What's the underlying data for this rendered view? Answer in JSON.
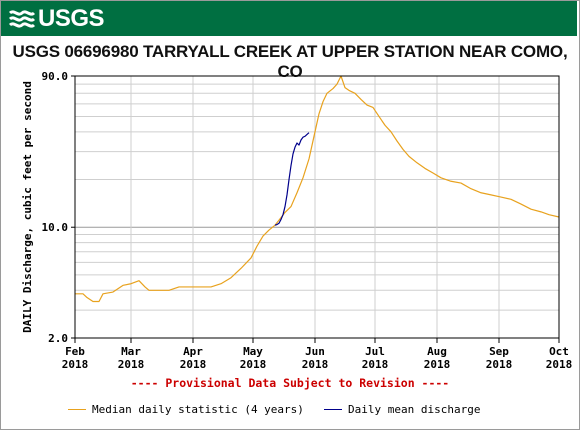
{
  "header": {
    "logo_text": "USGS",
    "logo_icon": "usgs-wave-icon"
  },
  "page_title": "USGS 06696980 TARRYALL CREEK AT UPPER STATION NEAR COMO, CO",
  "notice": "---- Provisional Data Subject to Revision ----",
  "legend": {
    "median_label": "Median daily statistic (4 years)",
    "mean_label": "Daily mean discharge"
  },
  "colors": {
    "banner": "#006f41",
    "median": "#e8a21e",
    "mean": "#00008b",
    "notice": "#cc0000"
  },
  "chart_data": {
    "type": "line",
    "ylabel": "DAILY Discharge, cubic feet per second",
    "yscale": "log",
    "ylim": [
      2.0,
      90.0
    ],
    "ytick_labels": [
      "90.0",
      "10.0",
      "2.0"
    ],
    "xlim": [
      "2018-02-01",
      "2018-10-01"
    ],
    "xtick_labels": [
      {
        "month": "Feb",
        "year": "2018"
      },
      {
        "month": "Mar",
        "year": "2018"
      },
      {
        "month": "Apr",
        "year": "2018"
      },
      {
        "month": "May",
        "year": "2018"
      },
      {
        "month": "Jun",
        "year": "2018"
      },
      {
        "month": "Jul",
        "year": "2018"
      },
      {
        "month": "Aug",
        "year": "2018"
      },
      {
        "month": "Sep",
        "year": "2018"
      },
      {
        "month": "Oct",
        "year": "2018"
      }
    ],
    "grid": true,
    "series": [
      {
        "name": "Median daily statistic (4 years)",
        "color": "#e8a21e",
        "points": [
          [
            "2018-02-01",
            3.8
          ],
          [
            "2018-02-05",
            3.8
          ],
          [
            "2018-02-07",
            3.6
          ],
          [
            "2018-02-10",
            3.4
          ],
          [
            "2018-02-13",
            3.4
          ],
          [
            "2018-02-15",
            3.8
          ],
          [
            "2018-02-20",
            3.9
          ],
          [
            "2018-02-25",
            4.3
          ],
          [
            "2018-03-01",
            4.4
          ],
          [
            "2018-03-05",
            4.6
          ],
          [
            "2018-03-08",
            4.2
          ],
          [
            "2018-03-10",
            4.0
          ],
          [
            "2018-03-15",
            4.0
          ],
          [
            "2018-03-20",
            4.0
          ],
          [
            "2018-03-25",
            4.2
          ],
          [
            "2018-03-31",
            4.2
          ],
          [
            "2018-04-05",
            4.2
          ],
          [
            "2018-04-10",
            4.2
          ],
          [
            "2018-04-15",
            4.4
          ],
          [
            "2018-04-20",
            4.8
          ],
          [
            "2018-04-25",
            5.5
          ],
          [
            "2018-04-30",
            6.4
          ],
          [
            "2018-05-03",
            7.6
          ],
          [
            "2018-05-06",
            8.8
          ],
          [
            "2018-05-09",
            9.6
          ],
          [
            "2018-05-12",
            10.3
          ],
          [
            "2018-05-15",
            11.5
          ],
          [
            "2018-05-17",
            12.4
          ],
          [
            "2018-05-20",
            13.5
          ],
          [
            "2018-05-23",
            16.5
          ],
          [
            "2018-05-26",
            20.5
          ],
          [
            "2018-05-29",
            27
          ],
          [
            "2018-06-01",
            40
          ],
          [
            "2018-06-03",
            52
          ],
          [
            "2018-06-05",
            62
          ],
          [
            "2018-06-07",
            70
          ],
          [
            "2018-06-10",
            75
          ],
          [
            "2018-06-12",
            80
          ],
          [
            "2018-06-14",
            90
          ],
          [
            "2018-06-16",
            76
          ],
          [
            "2018-06-18",
            73
          ],
          [
            "2018-06-21",
            70
          ],
          [
            "2018-06-24",
            64
          ],
          [
            "2018-06-27",
            59
          ],
          [
            "2018-06-30",
            57
          ],
          [
            "2018-07-03",
            50
          ],
          [
            "2018-07-06",
            44
          ],
          [
            "2018-07-09",
            40
          ],
          [
            "2018-07-12",
            35
          ],
          [
            "2018-07-15",
            31
          ],
          [
            "2018-07-18",
            28
          ],
          [
            "2018-07-22",
            25.5
          ],
          [
            "2018-07-26",
            23.5
          ],
          [
            "2018-07-30",
            22
          ],
          [
            "2018-08-03",
            20.5
          ],
          [
            "2018-08-08",
            19.5
          ],
          [
            "2018-08-13",
            19
          ],
          [
            "2018-08-18",
            17.5
          ],
          [
            "2018-08-23",
            16.5
          ],
          [
            "2018-08-28",
            16
          ],
          [
            "2018-09-02",
            15.5
          ],
          [
            "2018-09-07",
            15
          ],
          [
            "2018-09-12",
            14
          ],
          [
            "2018-09-17",
            13
          ],
          [
            "2018-09-22",
            12.5
          ],
          [
            "2018-09-26",
            12.0
          ],
          [
            "2018-10-01",
            11.6
          ]
        ]
      },
      {
        "name": "Daily mean discharge",
        "color": "#00008b",
        "points": [
          [
            "2018-05-12",
            10.3
          ],
          [
            "2018-05-13",
            10.4
          ],
          [
            "2018-05-14",
            10.6
          ],
          [
            "2018-05-15",
            11.2
          ],
          [
            "2018-05-16",
            12.0
          ],
          [
            "2018-05-17",
            13.5
          ],
          [
            "2018-05-18",
            16.0
          ],
          [
            "2018-05-19",
            20.0
          ],
          [
            "2018-05-20",
            24.5
          ],
          [
            "2018-05-21",
            29.0
          ],
          [
            "2018-05-22",
            32.0
          ],
          [
            "2018-05-23",
            34.0
          ],
          [
            "2018-05-24",
            33.0
          ],
          [
            "2018-05-25",
            35.5
          ],
          [
            "2018-05-26",
            37.0
          ],
          [
            "2018-05-27",
            37.5
          ],
          [
            "2018-05-28",
            38.5
          ],
          [
            "2018-05-29",
            39.5
          ]
        ]
      }
    ]
  }
}
